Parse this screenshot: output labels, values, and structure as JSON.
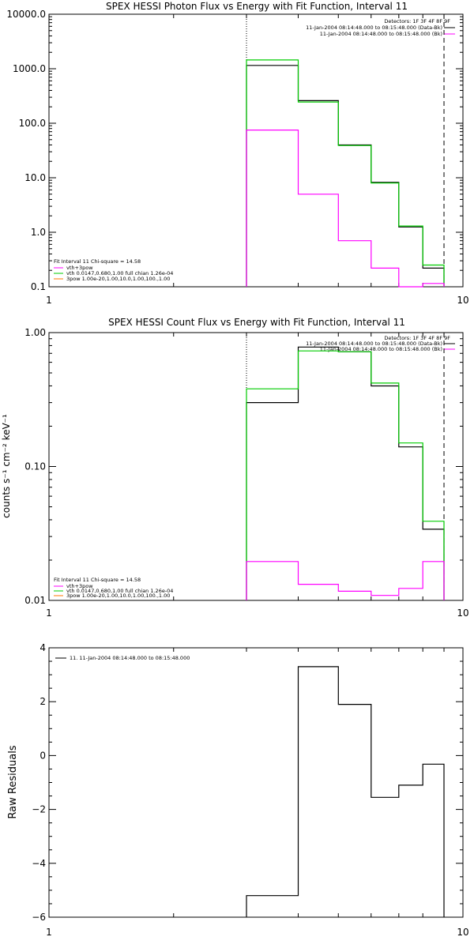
{
  "chart_data": [
    {
      "type": "line",
      "title": "SPEX HESSI Photon Flux vs Energy with Fit Function, Interval 11",
      "xscale": "log",
      "yscale": "log",
      "xlim": [
        1,
        10
      ],
      "ylim": [
        0.1,
        10000
      ],
      "xticks": [
        "1",
        "10"
      ],
      "yticks": [
        "0.1",
        "1.0",
        "10.0",
        "100.0",
        "1000.0",
        "10000.0"
      ],
      "ylabel": "",
      "top_legend_title": "Detectors: 1F 3F 4F 8F 9F",
      "top_legend": [
        {
          "label": "11-Jan-2004 08:14:48.000 to 08:15:48.000 (Data-Bk)",
          "color": "#000000"
        },
        {
          "label": "11-Jan-2004 08:14:48.000 to 08:15:48.000 (Bk)",
          "color": "#ff00ff"
        }
      ],
      "fit_title": "Fit Interval 11    Chi-square = 14.58",
      "fit_legend": [
        {
          "label": "vth+3pow",
          "color": "#ff00ff"
        },
        {
          "label": "vth 0.0147,0.680,1.00  full chian 1.26e-04",
          "color": "#00cc00"
        },
        {
          "label": "3pow 1.00e-20,1.00,10.0,1.00,100.,1.00",
          "color": "#ff7700"
        }
      ],
      "vlines": [
        {
          "x": 3.0,
          "style": "dotted"
        },
        {
          "x": 9.0,
          "style": "dashed"
        }
      ],
      "edges": [
        3.0,
        4.0,
        5.0,
        6.0,
        7.0,
        8.0,
        9.0
      ],
      "series": [
        {
          "name": "Data-Bk",
          "color": "#000000",
          "values": [
            1150,
            260,
            40,
            8.2,
            1.25,
            0.22
          ]
        },
        {
          "name": "vth+3pow",
          "color": "#00cc00",
          "values": [
            1450,
            245,
            39,
            8.0,
            1.3,
            0.25
          ]
        },
        {
          "name": "Bk",
          "color": "#ff00ff",
          "values": [
            75,
            5.0,
            0.7,
            0.22,
            0.1,
            0.115
          ]
        }
      ]
    },
    {
      "type": "line",
      "title": "SPEX HESSI Count Flux vs Energy with Fit Function, Interval 11",
      "xscale": "log",
      "yscale": "log",
      "xlim": [
        1,
        10
      ],
      "ylim": [
        0.01,
        1.0
      ],
      "xticks": [
        "1",
        "10"
      ],
      "yticks": [
        "0.01",
        "0.10",
        "1.00"
      ],
      "ylabel": "counts s⁻¹ cm⁻² keV⁻¹",
      "top_legend_title": "Detectors: 1F 3F 4F 8F 9F",
      "top_legend": [
        {
          "label": "11-Jan-2004 08:14:48.000 to 08:15:48.000 (Data-Bk)",
          "color": "#000000"
        },
        {
          "label": "11-Jan-2004 08:14:48.000 to 08:15:48.000 (Bk)",
          "color": "#ff00ff"
        }
      ],
      "fit_title": "Fit Interval 11    Chi-square = 14.58",
      "fit_legend": [
        {
          "label": "vth+3pow",
          "color": "#ff00ff"
        },
        {
          "label": "vth 0.0147,0.680,1.00  full chian 1.26e-04",
          "color": "#00cc00"
        },
        {
          "label": "3pow 1.00e-20,1.00,10.0,1.00,100.,1.00",
          "color": "#ff7700"
        }
      ],
      "vlines": [
        {
          "x": 3.0,
          "style": "dotted"
        },
        {
          "x": 9.0,
          "style": "dashed"
        }
      ],
      "edges": [
        3.0,
        4.0,
        5.0,
        6.0,
        7.0,
        8.0,
        9.0
      ],
      "series": [
        {
          "name": "Data-Bk",
          "color": "#000000",
          "values": [
            0.3,
            0.78,
            0.72,
            0.4,
            0.14,
            0.034
          ]
        },
        {
          "name": "vth+3pow",
          "color": "#00cc00",
          "values": [
            0.38,
            0.73,
            0.72,
            0.42,
            0.15,
            0.039
          ]
        },
        {
          "name": "Bk",
          "color": "#ff00ff",
          "values": [
            0.0195,
            0.0132,
            0.0117,
            0.0109,
            0.0123,
            0.0195
          ]
        }
      ]
    },
    {
      "type": "line",
      "title": "",
      "xscale": "log",
      "yscale": "linear",
      "xlim": [
        1,
        10
      ],
      "ylim": [
        -6,
        4
      ],
      "xticks": [
        "1",
        "10"
      ],
      "yticks": [
        "−6",
        "−4",
        "−2",
        "0",
        "2",
        "4"
      ],
      "ylabel": "Raw Residuals",
      "legend": [
        {
          "label": "11. 11-Jan-2004 08:14:48.000 to 08:15:48.000",
          "color": "#000000"
        }
      ],
      "edges": [
        3.0,
        4.0,
        5.0,
        6.0,
        7.0,
        8.0,
        9.0
      ],
      "series": [
        {
          "name": "",
          "color": "#000000",
          "values": [
            -5.2,
            3.3,
            1.9,
            -1.55,
            -1.1,
            -0.32
          ]
        }
      ]
    }
  ]
}
